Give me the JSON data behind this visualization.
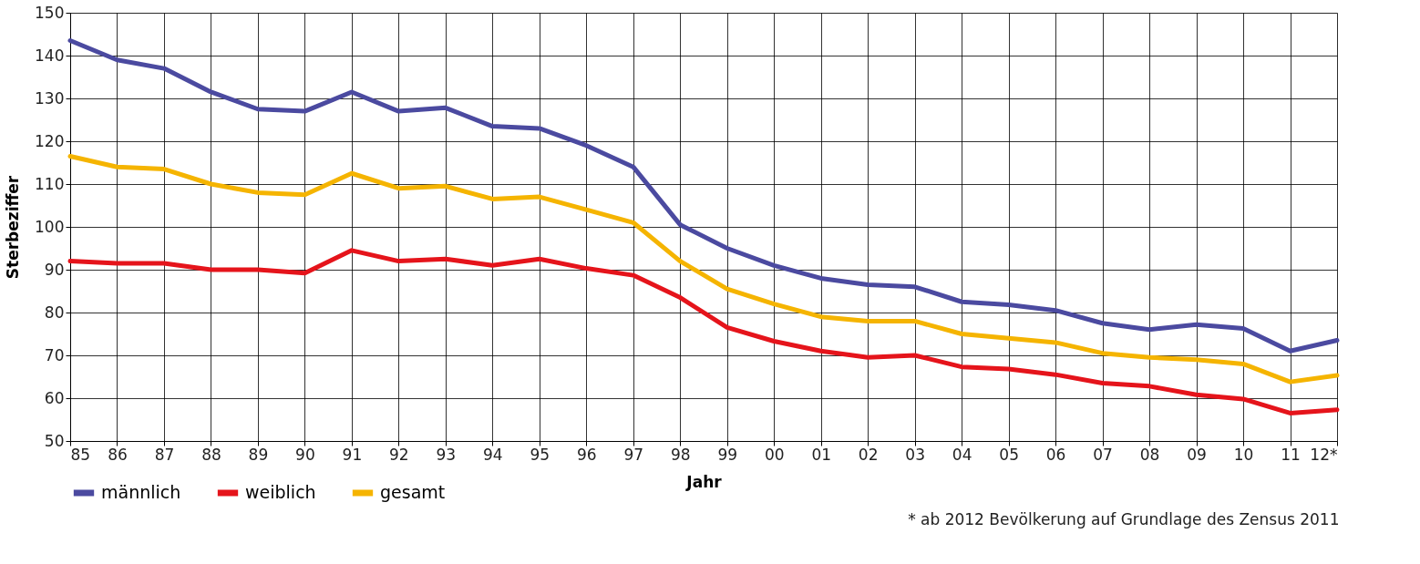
{
  "chart_data": {
    "type": "line",
    "xlabel": "Jahr",
    "ylabel": "Sterbeziffer",
    "categories": [
      "85",
      "86",
      "87",
      "88",
      "89",
      "90",
      "91",
      "92",
      "93",
      "94",
      "95",
      "96",
      "97",
      "98",
      "99",
      "00",
      "01",
      "02",
      "03",
      "04",
      "05",
      "06",
      "07",
      "08",
      "09",
      "10",
      "11",
      "12*"
    ],
    "series": [
      {
        "name": "männlich",
        "color": "#4b4aa0",
        "values": [
          143.5,
          139,
          137,
          131.5,
          127.5,
          127,
          131.5,
          127,
          127.8,
          123.5,
          123,
          119,
          114,
          100.5,
          95,
          91,
          88,
          86.5,
          86,
          82.5,
          81.8,
          80.5,
          77.5,
          76,
          77.2,
          76.3,
          71,
          73.5
        ]
      },
      {
        "name": "weiblich",
        "color": "#e5141b",
        "values": [
          92,
          91.5,
          91.5,
          90,
          90,
          89.2,
          94.5,
          92,
          92.5,
          91,
          92.5,
          90.3,
          88.7,
          83.5,
          76.5,
          73.3,
          71,
          69.5,
          70,
          67.3,
          66.8,
          65.5,
          63.5,
          62.8,
          60.8,
          59.8,
          56.5,
          57.3
        ]
      },
      {
        "name": "gesamt",
        "color": "#f5b400",
        "values": [
          116.5,
          114,
          113.5,
          110,
          108,
          107.5,
          112.5,
          109,
          109.5,
          106.5,
          107,
          104,
          101,
          92,
          85.5,
          82,
          79,
          78,
          78,
          75,
          74,
          73,
          70.5,
          69.5,
          69,
          68,
          63.8,
          65.3
        ]
      }
    ],
    "ylim": [
      50,
      150
    ],
    "yticks": [
      50,
      60,
      70,
      80,
      90,
      100,
      110,
      120,
      130,
      140,
      150
    ],
    "grid": true,
    "legend": "bottom left",
    "marker": "none",
    "line_style": "solid",
    "annotations": [
      "* ab 2012 Bevölkerung auf Grundlage des Zensus 2011"
    ]
  }
}
